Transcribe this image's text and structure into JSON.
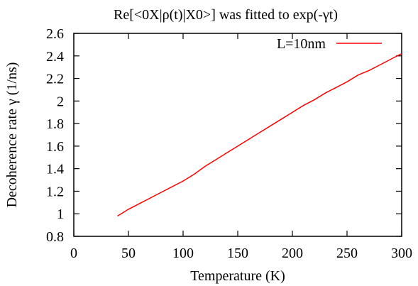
{
  "chart_data": {
    "type": "line",
    "title": "Re[<0X|ρ(t)|X0>] was fitted to exp(-γt)",
    "xlabel": "Temperature (K)",
    "ylabel": "Decoherence rate γ (1/ns)",
    "xlim": [
      0,
      300
    ],
    "ylim": [
      0.8,
      2.6
    ],
    "xticks": [
      0,
      50,
      100,
      150,
      200,
      250,
      300
    ],
    "yticks": [
      0.8,
      1,
      1.2,
      1.4,
      1.6,
      1.8,
      2,
      2.2,
      2.4,
      2.6
    ],
    "xtick_labels": [
      "0",
      "50",
      "100",
      "150",
      "200",
      "250",
      "300"
    ],
    "ytick_labels": [
      "0.8",
      "1",
      "1.2",
      "1.4",
      "1.6",
      "1.8",
      "2",
      "2.2",
      "2.4",
      "2.6"
    ],
    "grid": false,
    "legend_position": "top-right",
    "series": [
      {
        "name": "L=10nm",
        "color": "#ff0000",
        "x": [
          40,
          50,
          60,
          70,
          80,
          90,
          100,
          110,
          120,
          130,
          140,
          150,
          160,
          170,
          180,
          190,
          200,
          210,
          220,
          230,
          240,
          250,
          260,
          270,
          280,
          290,
          300
        ],
        "y": [
          0.98,
          1.04,
          1.09,
          1.14,
          1.19,
          1.24,
          1.29,
          1.35,
          1.42,
          1.48,
          1.54,
          1.6,
          1.66,
          1.72,
          1.78,
          1.84,
          1.9,
          1.96,
          2.01,
          2.07,
          2.12,
          2.17,
          2.23,
          2.27,
          2.32,
          2.37,
          2.42
        ]
      }
    ]
  }
}
